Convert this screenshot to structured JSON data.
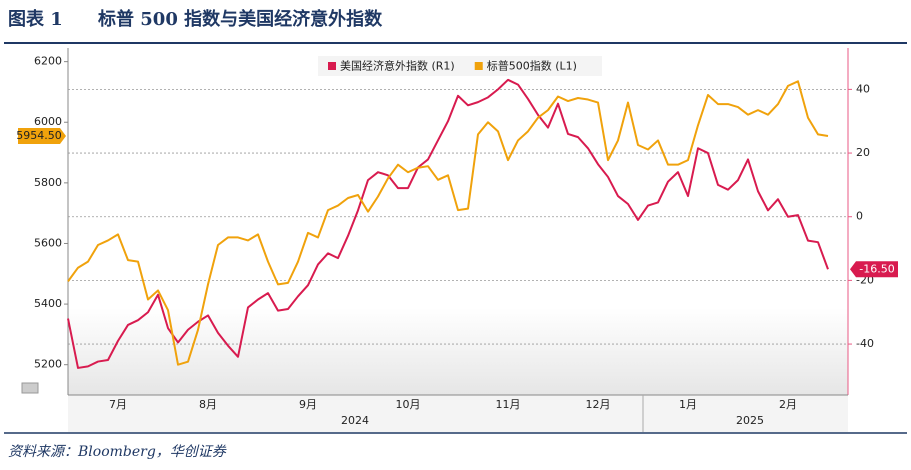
{
  "chart_data": {
    "type": "line",
    "figure_label": "图表 1",
    "title": "标普 500 指数与美国经济意外指数",
    "source": "资料来源：Bloomberg，华创证券",
    "categories": [
      null,
      null,
      null,
      null,
      null,
      "7月",
      null,
      null,
      null,
      null,
      null,
      null,
      null,
      null,
      "8月",
      null,
      null,
      null,
      null,
      null,
      null,
      null,
      null,
      null,
      "9月",
      null,
      null,
      null,
      null,
      null,
      null,
      null,
      null,
      null,
      "10月",
      null,
      null,
      null,
      null,
      null,
      null,
      null,
      null,
      null,
      "11月",
      null,
      null,
      null,
      null,
      null,
      null,
      null,
      null,
      "12月",
      null,
      null,
      null,
      null,
      null,
      null,
      null,
      null,
      "1月",
      null,
      null,
      null,
      null,
      null,
      null,
      null,
      null,
      null,
      "2月",
      null,
      null,
      null,
      null
    ],
    "x_group_labels": [
      "2024",
      "2025"
    ],
    "series": [
      {
        "name": "美国经济意外指数 (R1)",
        "color": "#d81b4f",
        "axis": "y2",
        "values": [
          -32,
          -47.5,
          -47,
          -45.5,
          -45,
          -39,
          -34,
          -32.5,
          -30,
          -24.5,
          -35,
          -39.5,
          -35.5,
          -33,
          -31,
          -36.5,
          -40.5,
          -44,
          -28.5,
          -26,
          -24,
          -29.5,
          -29,
          -25,
          -21.5,
          -15,
          -11.5,
          -13,
          -6,
          2,
          11.5,
          14,
          13,
          9,
          9,
          15.5,
          18,
          24,
          30,
          38,
          35,
          36,
          37.5,
          40,
          43,
          41.5,
          37,
          32,
          28,
          35.5,
          26,
          25,
          21.5,
          16.5,
          12.5,
          6.5,
          4,
          -1,
          3.5,
          4.5,
          11,
          14,
          6.5,
          21.5,
          20,
          10,
          8.5,
          11.5,
          18,
          8,
          2,
          5.5,
          0,
          0.5,
          -7.5,
          -8,
          -16.5
        ],
        "value_labels": [
          null,
          null,
          null,
          null,
          null,
          null,
          null,
          null,
          null,
          null,
          null,
          null,
          null,
          null,
          null,
          null,
          null,
          null,
          null,
          null,
          null,
          null,
          null,
          null,
          null,
          null,
          null,
          null,
          null,
          null,
          null,
          null,
          null,
          null,
          null,
          null,
          null,
          null,
          null,
          null,
          null,
          null,
          null,
          null,
          null,
          null,
          null,
          null,
          null,
          null,
          null,
          null,
          null,
          null,
          null,
          null,
          null,
          null,
          null,
          null,
          null,
          null,
          null,
          null,
          null,
          null,
          null,
          null,
          null,
          null,
          null,
          null,
          null,
          null,
          null,
          null,
          "-16.50"
        ]
      },
      {
        "name": "标普500指数 (L1)",
        "color": "#f0a20c",
        "axis": "y",
        "values": [
          5475,
          5520,
          5540,
          5595,
          5610,
          5630,
          5545,
          5540,
          5415,
          5445,
          5380,
          5200,
          5210,
          5315,
          5465,
          5595,
          5620,
          5620,
          5610,
          5630,
          5540,
          5465,
          5470,
          5540,
          5635,
          5620,
          5710,
          5725,
          5750,
          5760,
          5705,
          5755,
          5815,
          5860,
          5835,
          5850,
          5855,
          5810,
          5825,
          5710,
          5715,
          5960,
          6000,
          5970,
          5875,
          5940,
          5970,
          6015,
          6040,
          6085,
          6070,
          6080,
          6075,
          6065,
          5875,
          5940,
          6065,
          5925,
          5910,
          5940,
          5860,
          5860,
          5875,
          5990,
          6090,
          6060,
          6060,
          6050,
          6025,
          6040,
          6025,
          6060,
          6120,
          6135,
          6015,
          5960,
          5954.5
        ],
        "value_labels": [
          null,
          null,
          null,
          null,
          null,
          null,
          null,
          null,
          null,
          null,
          null,
          null,
          null,
          null,
          null,
          null,
          null,
          null,
          null,
          null,
          null,
          null,
          null,
          null,
          null,
          null,
          null,
          null,
          null,
          null,
          null,
          null,
          null,
          null,
          null,
          null,
          null,
          null,
          null,
          null,
          null,
          null,
          null,
          null,
          null,
          null,
          null,
          null,
          null,
          null,
          null,
          null,
          null,
          null,
          null,
          null,
          null,
          null,
          null,
          null,
          null,
          null,
          null,
          null,
          null,
          null,
          null,
          null,
          null,
          null,
          null,
          null,
          null,
          null,
          null,
          null,
          "5954.50"
        ]
      }
    ],
    "ylim": [
      5100,
      6245
    ],
    "yticks": [
      5200,
      5400,
      5600,
      5800,
      6000,
      6200
    ],
    "y2lim": [
      -56,
      53
    ],
    "y2ticks": [
      -40,
      -20,
      0,
      20,
      40
    ],
    "grid": true,
    "legend": "top"
  }
}
